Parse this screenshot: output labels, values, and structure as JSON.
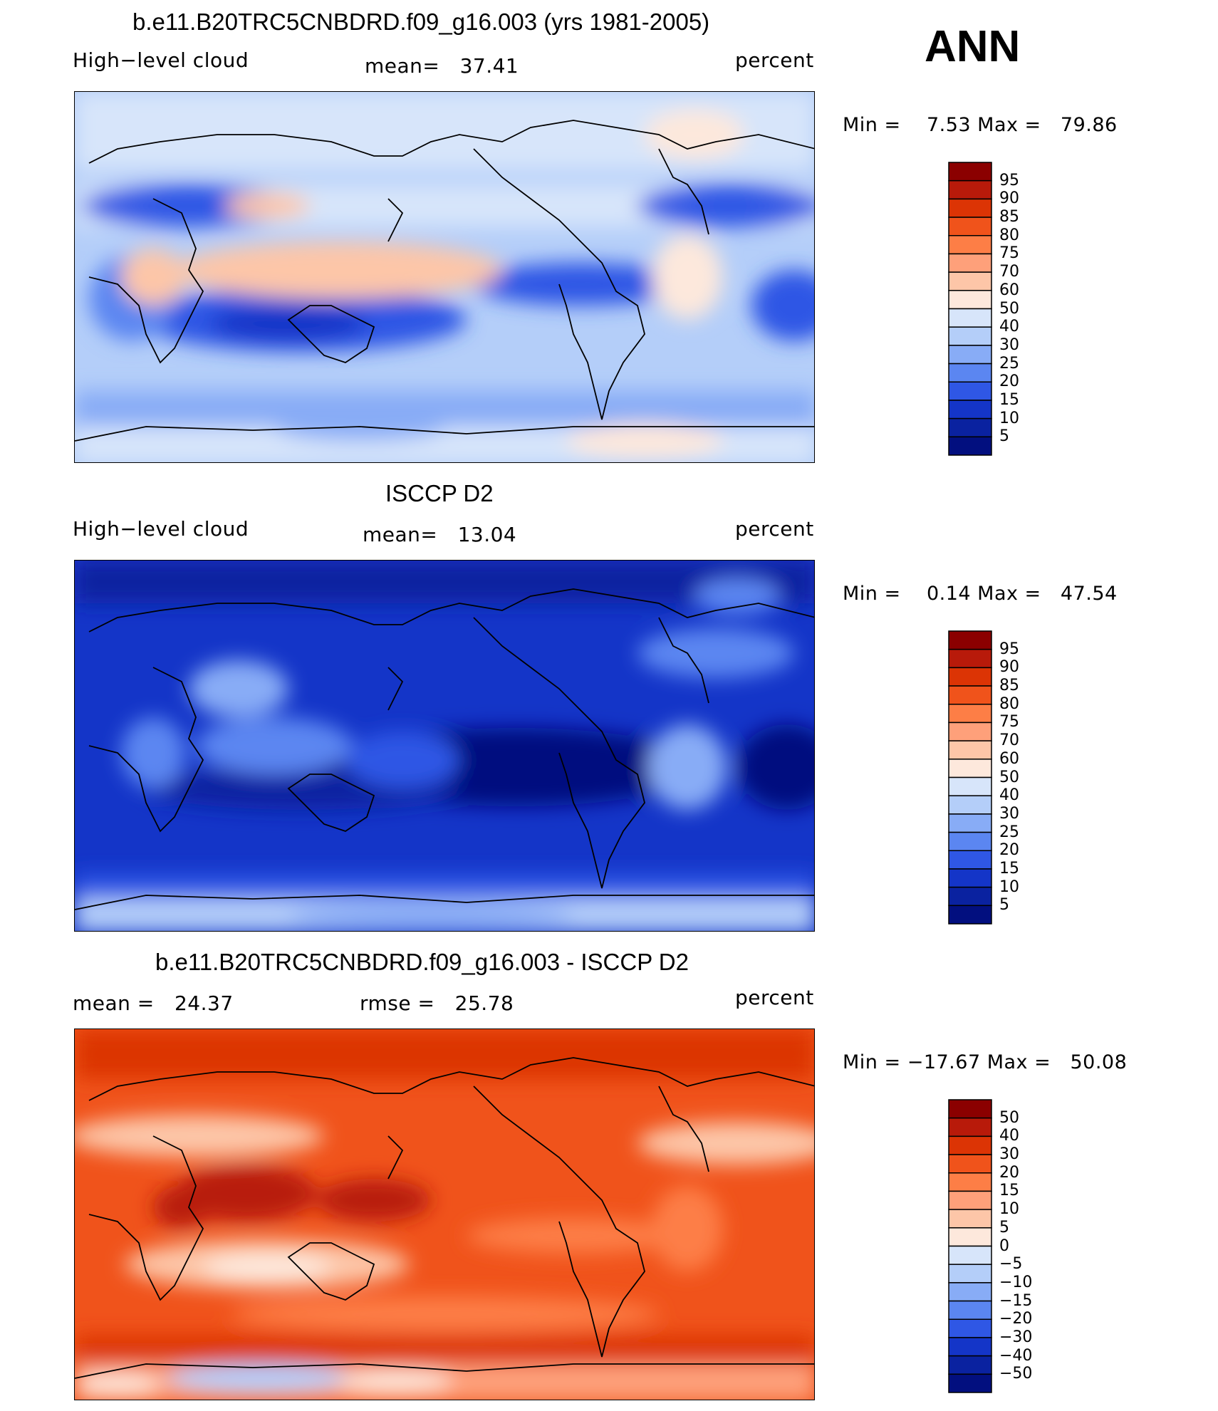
{
  "season": "ANN",
  "panels": [
    {
      "title": "b.e11.B20TRC5CNBDRD.f09_g16.003 (yrs 1981-2005)",
      "left_label": "High−level cloud",
      "center_label": "mean=   37.41",
      "right_label": "percent",
      "minmax": "Min =    7.53 Max =   79.86",
      "colorbar_labels": [
        "95",
        "90",
        "85",
        "80",
        "75",
        "70",
        "60",
        "50",
        "40",
        "30",
        "25",
        "20",
        "15",
        "10",
        "5"
      ],
      "colorbar_colors": [
        "#8b0000",
        "#b81a0a",
        "#dc3405",
        "#f0531b",
        "#fd7e46",
        "#fea07a",
        "#fdc6a8",
        "#fde8dc",
        "#d7e5fa",
        "#b4cef9",
        "#88acf6",
        "#5b86f1",
        "#2f57e5",
        "#1435c8",
        "#0a22a0",
        "#020f7f"
      ],
      "map_id": "map1",
      "mean": 37.41,
      "min": 7.53,
      "max": 79.86
    },
    {
      "title": "ISCCP D2",
      "left_label": "High−level cloud",
      "center_label": "mean=   13.04",
      "right_label": "percent",
      "minmax": "Min =    0.14 Max =   47.54",
      "colorbar_labels": [
        "95",
        "90",
        "85",
        "80",
        "75",
        "70",
        "60",
        "50",
        "40",
        "30",
        "25",
        "20",
        "15",
        "10",
        "5"
      ],
      "colorbar_colors": [
        "#8b0000",
        "#b81a0a",
        "#dc3405",
        "#f0531b",
        "#fd7e46",
        "#fea07a",
        "#fdc6a8",
        "#fde8dc",
        "#d7e5fa",
        "#b4cef9",
        "#88acf6",
        "#5b86f1",
        "#2f57e5",
        "#1435c8",
        "#0a22a0",
        "#020f7f"
      ],
      "map_id": "map2",
      "mean": 13.04,
      "min": 0.14,
      "max": 47.54
    },
    {
      "title": "b.e11.B20TRC5CNBDRD.f09_g16.003 - ISCCP D2",
      "left_label": "mean =   24.37",
      "center_label": "rmse =   25.78",
      "right_label": "percent",
      "minmax": "Min = −17.67 Max =   50.08",
      "colorbar_labels": [
        "50",
        "40",
        "30",
        "20",
        "15",
        "10",
        "5",
        "0",
        "−5",
        "−10",
        "−15",
        "−20",
        "−30",
        "−40",
        "−50"
      ],
      "colorbar_colors": [
        "#8b0000",
        "#b81a0a",
        "#dc3405",
        "#f0531b",
        "#fd7e46",
        "#fea07a",
        "#fdc6a8",
        "#fde8dc",
        "#d7e5fa",
        "#b4cef9",
        "#88acf6",
        "#5b86f1",
        "#2f57e5",
        "#1435c8",
        "#0a22a0",
        "#020f7f"
      ],
      "map_id": "map3",
      "mean": 24.37,
      "rmse": 25.78,
      "min": -17.67,
      "max": 50.08
    }
  ]
}
